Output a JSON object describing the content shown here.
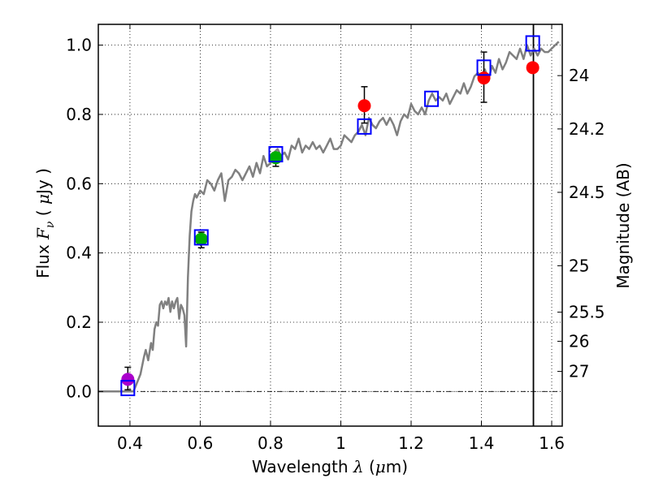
{
  "chart_data": {
    "type": "scatter",
    "xlabel": {
      "prefix": "Wavelength  ",
      "symbol": "λ",
      "suffix": " (",
      "unit_mu": "μ",
      "unit_rest": "m)"
    },
    "ylabel": {
      "prefix": "Flux  ",
      "symbol": "F",
      "sub": "ν",
      "mid": "  ( ",
      "mu": "μ",
      "rest": "Jy )"
    },
    "y2label": "Magnitude (AB)",
    "xlim": [
      0.31,
      1.63
    ],
    "ylim": [
      -0.1,
      1.06
    ],
    "xticks": [
      0.4,
      0.6,
      0.8,
      1.0,
      1.2,
      1.4,
      1.6
    ],
    "xtick_labels": [
      "0.4",
      "0.6",
      "0.8",
      "1",
      "1.2",
      "1.4",
      "1.6"
    ],
    "yticks": [
      0.0,
      0.2,
      0.4,
      0.6,
      0.8,
      1.0
    ],
    "ytick_labels": [
      "0.0",
      "0.2",
      "0.4",
      "0.6",
      "0.8",
      "1.0"
    ],
    "y2_ticks": [
      {
        "label": "24",
        "flux": 0.912
      },
      {
        "label": "24.2",
        "flux": 0.758
      },
      {
        "label": "24.5",
        "flux": 0.575
      },
      {
        "label": "25",
        "flux": 0.363
      },
      {
        "label": "25.5",
        "flux": 0.229
      },
      {
        "label": "26",
        "flux": 0.145
      },
      {
        "label": "27",
        "flux": 0.058
      }
    ],
    "grid": true,
    "vline_x": 1.548,
    "hline_y": 0.0,
    "colors": {
      "model": "#808080",
      "purple": "#aa00cc",
      "green": "#00b000",
      "red": "#ff0000",
      "box": "#0000ff",
      "error": "#000000"
    },
    "model_spectrum": {
      "x": [
        0.31,
        0.4,
        0.41,
        0.43,
        0.44,
        0.445,
        0.452,
        0.46,
        0.465,
        0.47,
        0.475,
        0.48,
        0.485,
        0.49,
        0.495,
        0.5,
        0.505,
        0.51,
        0.515,
        0.52,
        0.525,
        0.53,
        0.535,
        0.54,
        0.545,
        0.55,
        0.555,
        0.56,
        0.565,
        0.57,
        0.575,
        0.58,
        0.585,
        0.59,
        0.6,
        0.61,
        0.62,
        0.63,
        0.64,
        0.65,
        0.66,
        0.67,
        0.68,
        0.69,
        0.7,
        0.71,
        0.72,
        0.73,
        0.74,
        0.75,
        0.76,
        0.77,
        0.78,
        0.79,
        0.8,
        0.81,
        0.82,
        0.83,
        0.84,
        0.85,
        0.86,
        0.87,
        0.88,
        0.89,
        0.9,
        0.91,
        0.92,
        0.93,
        0.94,
        0.95,
        0.96,
        0.97,
        0.98,
        0.99,
        1.0,
        1.01,
        1.02,
        1.03,
        1.04,
        1.05,
        1.06,
        1.07,
        1.08,
        1.09,
        1.1,
        1.11,
        1.12,
        1.13,
        1.14,
        1.15,
        1.16,
        1.17,
        1.18,
        1.19,
        1.2,
        1.21,
        1.22,
        1.23,
        1.24,
        1.25,
        1.26,
        1.27,
        1.28,
        1.29,
        1.3,
        1.31,
        1.32,
        1.33,
        1.34,
        1.35,
        1.36,
        1.37,
        1.38,
        1.39,
        1.4,
        1.41,
        1.42,
        1.43,
        1.44,
        1.45,
        1.46,
        1.47,
        1.48,
        1.49,
        1.5,
        1.51,
        1.52,
        1.53,
        1.54,
        1.55,
        1.56,
        1.57,
        1.58,
        1.59,
        1.6,
        1.61,
        1.62
      ],
      "y": [
        0.0,
        0.0,
        0.0,
        0.05,
        0.1,
        0.12,
        0.09,
        0.14,
        0.12,
        0.18,
        0.2,
        0.19,
        0.25,
        0.26,
        0.24,
        0.26,
        0.25,
        0.27,
        0.23,
        0.26,
        0.24,
        0.26,
        0.27,
        0.21,
        0.25,
        0.24,
        0.22,
        0.13,
        0.33,
        0.45,
        0.52,
        0.55,
        0.57,
        0.56,
        0.58,
        0.57,
        0.61,
        0.6,
        0.58,
        0.61,
        0.63,
        0.55,
        0.61,
        0.62,
        0.64,
        0.63,
        0.61,
        0.63,
        0.65,
        0.62,
        0.66,
        0.63,
        0.68,
        0.65,
        0.66,
        0.69,
        0.7,
        0.68,
        0.69,
        0.67,
        0.71,
        0.7,
        0.73,
        0.69,
        0.71,
        0.7,
        0.72,
        0.7,
        0.71,
        0.69,
        0.71,
        0.73,
        0.7,
        0.7,
        0.71,
        0.74,
        0.73,
        0.72,
        0.74,
        0.75,
        0.77,
        0.74,
        0.79,
        0.77,
        0.76,
        0.78,
        0.79,
        0.77,
        0.79,
        0.77,
        0.74,
        0.78,
        0.8,
        0.79,
        0.83,
        0.81,
        0.8,
        0.82,
        0.8,
        0.84,
        0.86,
        0.84,
        0.85,
        0.84,
        0.86,
        0.83,
        0.85,
        0.87,
        0.86,
        0.89,
        0.86,
        0.88,
        0.91,
        0.92,
        0.91,
        0.93,
        0.9,
        0.94,
        0.92,
        0.96,
        0.93,
        0.95,
        0.98,
        0.97,
        0.96,
        0.99,
        0.96,
        1.0,
        0.97,
        0.99,
        0.97,
        0.99,
        0.98,
        0.98,
        0.99,
        1.0,
        1.01
      ]
    },
    "series": [
      {
        "name": "purple",
        "marker": "circle",
        "color": "#aa00cc",
        "x": [
          0.394
        ],
        "y": [
          0.035
        ],
        "err_lo": [
          0.03
        ],
        "err_hi": [
          0.035
        ]
      },
      {
        "name": "green",
        "marker": "circle",
        "color": "#00b000",
        "x": [
          0.603,
          0.815
        ],
        "y": [
          0.44,
          0.675
        ],
        "err_lo": [
          0.025,
          0.025
        ],
        "err_hi": [
          0.02,
          0.015
        ]
      },
      {
        "name": "red",
        "marker": "circle",
        "color": "#ff0000",
        "x": [
          1.067,
          1.407,
          1.546
        ],
        "y": [
          0.825,
          0.905,
          0.935
        ],
        "err_lo": [
          0.05,
          0.07,
          0
        ],
        "err_hi": [
          0.055,
          0.075,
          0
        ]
      },
      {
        "name": "model-photometry",
        "marker": "square",
        "color": "#0000ff",
        "x": [
          0.394,
          0.603,
          0.815,
          1.067,
          1.258,
          1.407,
          1.546
        ],
        "y": [
          0.01,
          0.445,
          0.685,
          0.765,
          0.845,
          0.935,
          1.005
        ]
      }
    ]
  }
}
